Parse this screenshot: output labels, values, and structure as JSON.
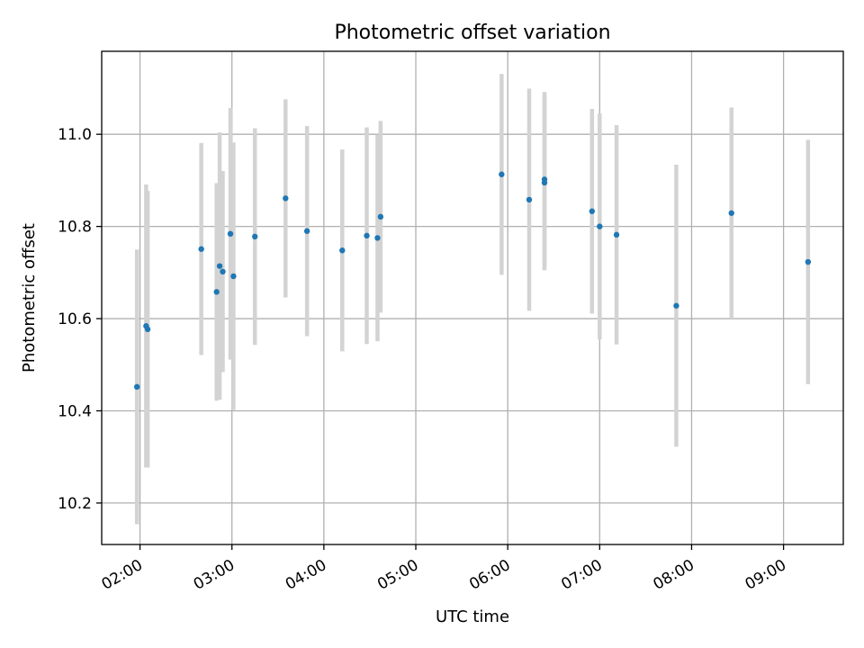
{
  "chart_data": {
    "type": "scatter",
    "title": "Photometric offset variation",
    "xlabel": "UTC time",
    "ylabel": "Photometric offset",
    "x_axis": {
      "kind": "time",
      "range": [
        "01:35",
        "09:39"
      ],
      "ticks": [
        "02:00",
        "03:00",
        "04:00",
        "05:00",
        "06:00",
        "07:00",
        "08:00",
        "09:00"
      ]
    },
    "y_axis": {
      "range": [
        10.11,
        11.18
      ],
      "ticks": [
        10.2,
        10.4,
        10.6,
        10.8,
        11.0
      ],
      "tick_labels": [
        "10.2",
        "10.4",
        "10.6",
        "10.8",
        "11.0"
      ]
    },
    "grid": true,
    "marker_color": "#1f77b4",
    "errorbar_color": "#d3d3d3",
    "points": [
      {
        "t": "01:58",
        "y": 10.452,
        "err": 0.298
      },
      {
        "t": "02:04",
        "y": 10.584,
        "err": 0.307
      },
      {
        "t": "02:05",
        "y": 10.577,
        "err": 0.3
      },
      {
        "t": "02:40",
        "y": 10.751,
        "err": 0.23
      },
      {
        "t": "02:50",
        "y": 10.658,
        "err": 0.236
      },
      {
        "t": "02:52",
        "y": 10.714,
        "err": 0.29
      },
      {
        "t": "02:54",
        "y": 10.702,
        "err": 0.218
      },
      {
        "t": "02:59",
        "y": 10.784,
        "err": 0.273
      },
      {
        "t": "03:01",
        "y": 10.692,
        "err": 0.29
      },
      {
        "t": "03:15",
        "y": 10.778,
        "err": 0.235
      },
      {
        "t": "03:35",
        "y": 10.861,
        "err": 0.215
      },
      {
        "t": "03:49",
        "y": 10.79,
        "err": 0.228
      },
      {
        "t": "04:12",
        "y": 10.748,
        "err": 0.219
      },
      {
        "t": "04:28",
        "y": 10.78,
        "err": 0.235
      },
      {
        "t": "04:35",
        "y": 10.775,
        "err": 0.224
      },
      {
        "t": "04:37",
        "y": 10.821,
        "err": 0.208
      },
      {
        "t": "05:56",
        "y": 10.913,
        "err": 0.218
      },
      {
        "t": "06:14",
        "y": 10.858,
        "err": 0.241
      },
      {
        "t": "06:24",
        "y": 10.895,
        "err": 0.19
      },
      {
        "t": "06:24",
        "y": 10.902,
        "err": 0.19
      },
      {
        "t": "06:55",
        "y": 10.833,
        "err": 0.222
      },
      {
        "t": "07:00",
        "y": 10.8,
        "err": 0.245
      },
      {
        "t": "07:11",
        "y": 10.782,
        "err": 0.238
      },
      {
        "t": "07:50",
        "y": 10.628,
        "err": 0.306
      },
      {
        "t": "08:26",
        "y": 10.829,
        "err": 0.229
      },
      {
        "t": "09:16",
        "y": 10.723,
        "err": 0.265
      }
    ]
  }
}
